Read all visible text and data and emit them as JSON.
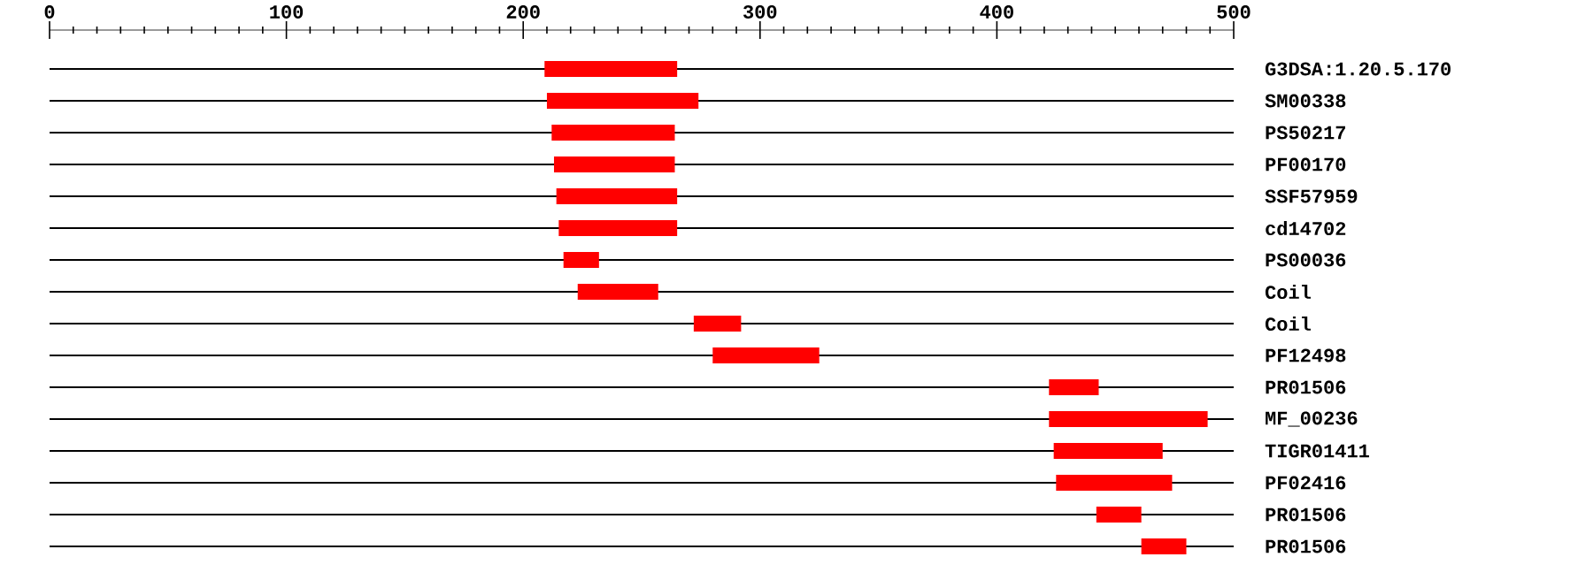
{
  "chart_data": {
    "type": "bar",
    "orientation": "horizontal",
    "categories": [
      "G3DSA:1.20.5.170",
      "SM00338",
      "PS50217",
      "PF00170",
      "SSF57959",
      "cd14702",
      "PS00036",
      "Coil",
      "Coil",
      "PF12498",
      "PR01506",
      "MF_00236",
      "TIGR01411",
      "PF02416",
      "PR01506",
      "PR01506"
    ],
    "base": [
      209,
      210,
      212,
      213,
      214,
      215,
      217,
      223,
      272,
      280,
      422,
      422,
      424,
      425,
      442,
      461
    ],
    "values": [
      56,
      64,
      52,
      51,
      51,
      50,
      15,
      34,
      20,
      45,
      21,
      67,
      46,
      49,
      19,
      19
    ],
    "color": "#ff0000",
    "xlim": [
      0,
      500
    ],
    "xticks": [
      0,
      {
        "value": 10,
        "label": null
      },
      {
        "value": 20,
        "label": null
      },
      {
        "value": 30,
        "label": null
      },
      {
        "value": 40,
        "label": null
      },
      {
        "value": 50,
        "label": null
      },
      {
        "value": 60,
        "label": null
      },
      {
        "value": 70,
        "label": null
      },
      {
        "value": 80,
        "label": null
      },
      {
        "value": 90,
        "label": null
      },
      100,
      {
        "value": 110,
        "label": null
      },
      {
        "value": 120,
        "label": null
      },
      {
        "value": 130,
        "label": null
      },
      {
        "value": 140,
        "label": null
      },
      {
        "value": 150,
        "label": null
      },
      {
        "value": 160,
        "label": null
      },
      {
        "value": 170,
        "label": null
      },
      {
        "value": 180,
        "label": null
      },
      {
        "value": 190,
        "label": null
      },
      200,
      {
        "value": 210,
        "label": null
      },
      {
        "value": 220,
        "label": null
      },
      {
        "value": 230,
        "label": null
      },
      {
        "value": 240,
        "label": null
      },
      {
        "value": 250,
        "label": null
      },
      {
        "value": 260,
        "label": null
      },
      {
        "value": 270,
        "label": null
      },
      {
        "value": 280,
        "label": null
      },
      {
        "value": 290,
        "label": null
      },
      300,
      {
        "value": 310,
        "label": null
      },
      {
        "value": 320,
        "label": null
      },
      {
        "value": 330,
        "label": null
      },
      {
        "value": 340,
        "label": null
      },
      {
        "value": 350,
        "label": null
      },
      {
        "value": 360,
        "label": null
      },
      {
        "value": 370,
        "label": null
      },
      {
        "value": 380,
        "label": null
      },
      {
        "value": 390,
        "label": null
      },
      400,
      {
        "value": 410,
        "label": null
      },
      {
        "value": 420,
        "label": null
      },
      {
        "value": 430,
        "label": null
      },
      {
        "value": 440,
        "label": null
      },
      {
        "value": 450,
        "label": null
      },
      {
        "value": 460,
        "label": null
      },
      {
        "value": 470,
        "label": null
      },
      {
        "value": 480,
        "label": null
      },
      {
        "value": 490,
        "label": null
      },
      500
    ],
    "grid": "y"
  }
}
